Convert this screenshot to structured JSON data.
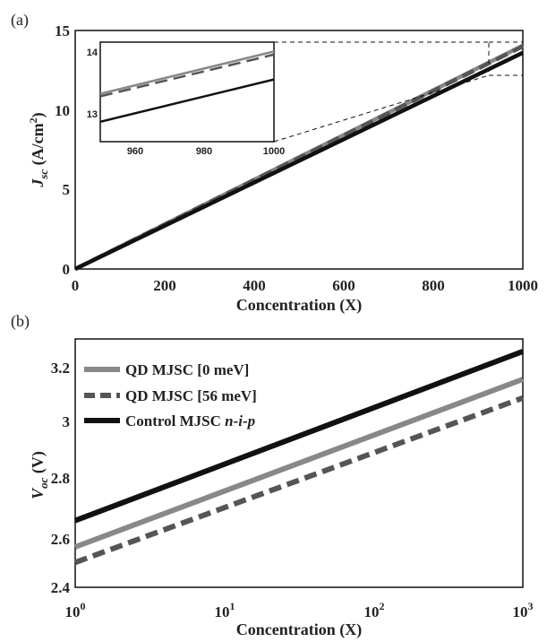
{
  "chart_data": [
    {
      "panel_label": "(a)",
      "type": "line",
      "xlabel": "Concentration (X)",
      "ylabel_main": "J",
      "ylabel_sub": "sc",
      "ylabel_unit_pre": " (A/cm",
      "ylabel_unit_sup": "2",
      "ylabel_unit_post": ")",
      "xlim": [
        0,
        1000
      ],
      "ylim": [
        0,
        15
      ],
      "xticks": [
        "0",
        "200",
        "400",
        "600",
        "800",
        "1000"
      ],
      "yticks": [
        "0",
        "5",
        "10",
        "15"
      ],
      "series": [
        {
          "color": "#888888",
          "dash": "none",
          "x": [
            0,
            1000
          ],
          "y": [
            0,
            14.05
          ]
        },
        {
          "color": "#555555",
          "dash": "dashed",
          "x": [
            0,
            1000
          ],
          "y": [
            0,
            14.0
          ]
        },
        {
          "color": "#111111",
          "dash": "none",
          "x": [
            0,
            1000
          ],
          "y": [
            0,
            13.6
          ]
        }
      ],
      "inset": {
        "xlim": [
          950,
          1000
        ],
        "ylim": [
          12.6,
          14.2
        ],
        "xticks": [
          "960",
          "980",
          "1000"
        ],
        "yticks": [
          "13",
          "14"
        ],
        "series": [
          {
            "color": "#888888",
            "dash": "none",
            "x": [
              950,
              1000
            ],
            "y": [
              13.37,
              14.05
            ]
          },
          {
            "color": "#555555",
            "dash": "dashed",
            "x": [
              950,
              1000
            ],
            "y": [
              13.33,
              14.0
            ]
          },
          {
            "color": "#111111",
            "dash": "none",
            "x": [
              950,
              1000
            ],
            "y": [
              12.92,
              13.6
            ]
          }
        ]
      }
    },
    {
      "panel_label": "(b)",
      "type": "line",
      "xscale": "log",
      "xlabel": "Concentration (X)",
      "ylabel_main": "V",
      "ylabel_sub": "oc",
      "ylabel_unit": " (V)",
      "xlim": [
        1,
        1000
      ],
      "ylim": [
        2.4,
        3.2
      ],
      "xticks_base": [
        "10",
        "10",
        "10",
        "10"
      ],
      "xticks_exp": [
        "0",
        "1",
        "2",
        "3"
      ],
      "yticks": [
        "2.4",
        "2.6",
        "2.8",
        "3",
        "3.2"
      ],
      "legend": {
        "position": "top-left",
        "entries": [
          {
            "label": "QD MJSC [0 meV]"
          },
          {
            "label": "QD MJSC [56 meV]"
          },
          {
            "label_pre": "Control MJSC ",
            "label_italic": "n-i-p"
          }
        ]
      },
      "series": [
        {
          "color": "#888888",
          "dash": "none",
          "x": [
            1,
            1000
          ],
          "y": [
            2.53,
            3.07
          ]
        },
        {
          "color": "#555555",
          "dash": "dashed",
          "x": [
            1,
            1000
          ],
          "y": [
            2.48,
            3.01
          ]
        },
        {
          "color": "#111111",
          "dash": "none",
          "x": [
            1,
            1000
          ],
          "y": [
            2.615,
            3.16
          ]
        }
      ]
    }
  ]
}
